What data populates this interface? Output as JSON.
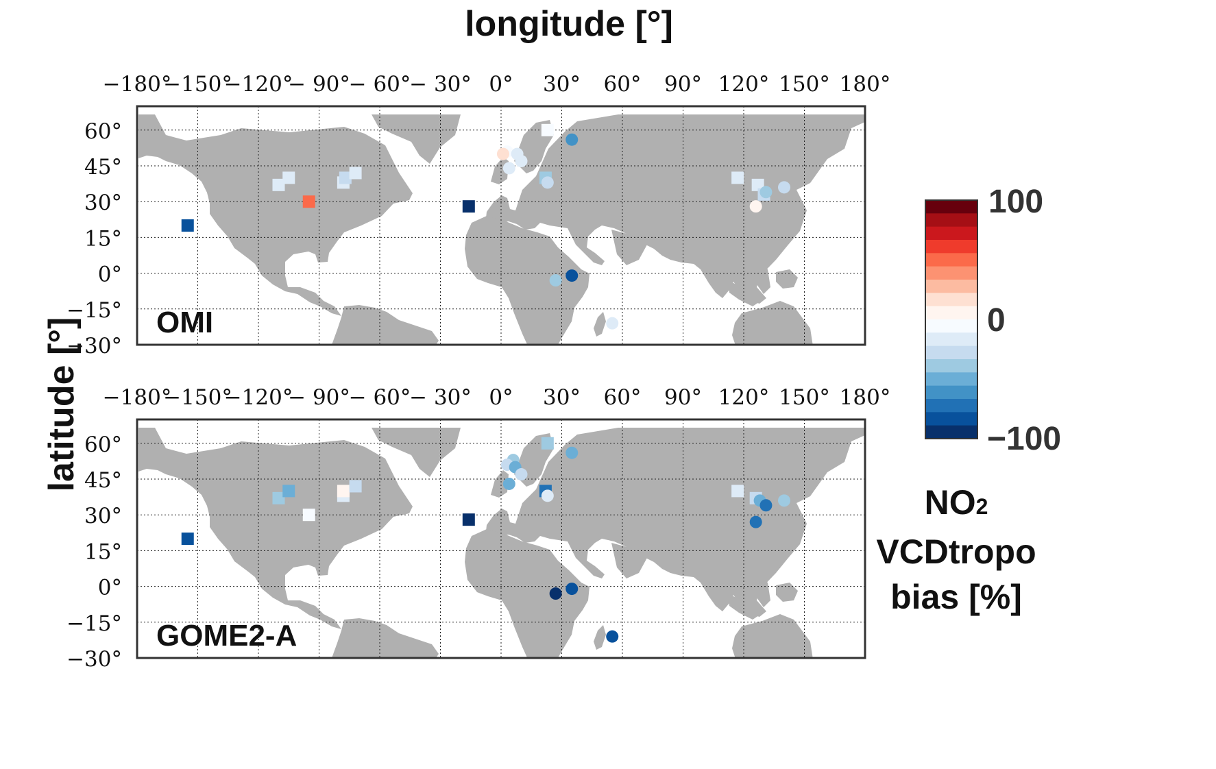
{
  "figure": {
    "x_title": "longitude [°]",
    "y_title": "latitude [°]"
  },
  "axes": {
    "lon_ticks": [
      "−180°",
      "−150°",
      "−120°",
      "− 90°",
      "− 60°",
      "− 30°",
      "0°",
      "30°",
      "60°",
      "90°",
      "120°",
      "150°",
      "180°"
    ],
    "lat_ticks": [
      "60°",
      "45°",
      "30°",
      "15°",
      "0°",
      "−15°",
      "−30°"
    ],
    "lon_values": [
      -180,
      -150,
      -120,
      -90,
      -60,
      -30,
      0,
      30,
      60,
      90,
      120,
      150,
      180
    ],
    "lat_values": [
      60,
      45,
      30,
      15,
      0,
      -15,
      -30
    ],
    "lon_range": [
      -180,
      180
    ],
    "lat_range": [
      -30,
      70
    ],
    "grid": "dotted"
  },
  "colorbar": {
    "max_label": "100",
    "mid_label": "0",
    "min_label": "−100",
    "title_line1_main": "NO",
    "title_line1_sub": "2",
    "title_line2": "VCDtropo",
    "title_line3": "bias [%]",
    "range": [
      -100,
      100
    ],
    "colors": [
      "#67000d",
      "#a50f15",
      "#cb181d",
      "#ef3b2c",
      "#fb6a4a",
      "#fc9272",
      "#fcbba1",
      "#fee0d2",
      "#fff5f0",
      "#f7fbff",
      "#deebf7",
      "#c6dbef",
      "#9ecae1",
      "#6baed6",
      "#4292c6",
      "#2171b5",
      "#08519c",
      "#08306b"
    ]
  },
  "chart_data": [
    {
      "type": "scatter",
      "panel_label": "OMI",
      "x_label": "longitude [°]",
      "y_label": "latitude [°]",
      "markers": [
        {
          "shape": "square",
          "lon": -155,
          "lat": 20,
          "bias": -78
        },
        {
          "shape": "square",
          "lon": -105,
          "lat": 40,
          "bias": -20
        },
        {
          "shape": "square",
          "lon": -110,
          "lat": 37,
          "bias": -12
        },
        {
          "shape": "square",
          "lon": -95,
          "lat": 30,
          "bias": 55
        },
        {
          "shape": "square",
          "lon": -78,
          "lat": 38,
          "bias": -15
        },
        {
          "shape": "square",
          "lon": -77,
          "lat": 40,
          "bias": -25
        },
        {
          "shape": "square",
          "lon": -72,
          "lat": 42,
          "bias": -20
        },
        {
          "shape": "square",
          "lon": -16,
          "lat": 28,
          "bias": -100
        },
        {
          "shape": "square",
          "lon": 23,
          "lat": 60,
          "bias": -5
        },
        {
          "shape": "circle",
          "lon": 35,
          "lat": 56,
          "bias": -65
        },
        {
          "shape": "circle",
          "lon": 3,
          "lat": 51,
          "bias": -10
        },
        {
          "shape": "circle",
          "lon": 1,
          "lat": 50,
          "bias": 15
        },
        {
          "shape": "circle",
          "lon": 8,
          "lat": 50,
          "bias": -20
        },
        {
          "shape": "circle",
          "lon": 10,
          "lat": 47,
          "bias": -20
        },
        {
          "shape": "circle",
          "lon": 4,
          "lat": 44,
          "bias": -15
        },
        {
          "shape": "square",
          "lon": 22,
          "lat": 40,
          "bias": -40
        },
        {
          "shape": "circle",
          "lon": 23,
          "lat": 38,
          "bias": -30
        },
        {
          "shape": "circle",
          "lon": 35,
          "lat": -1,
          "bias": -80
        },
        {
          "shape": "circle",
          "lon": 27,
          "lat": -3,
          "bias": -35
        },
        {
          "shape": "circle",
          "lon": 55,
          "lat": -21,
          "bias": -18
        },
        {
          "shape": "square",
          "lon": 117,
          "lat": 40,
          "bias": -18
        },
        {
          "shape": "square",
          "lon": 127,
          "lat": 37,
          "bias": -20
        },
        {
          "shape": "square",
          "lon": 130,
          "lat": 33,
          "bias": -30
        },
        {
          "shape": "circle",
          "lon": 140,
          "lat": 36,
          "bias": -25
        },
        {
          "shape": "circle",
          "lon": 126,
          "lat": 28,
          "bias": 8
        },
        {
          "shape": "circle",
          "lon": 131,
          "lat": 34,
          "bias": -40
        }
      ]
    },
    {
      "type": "scatter",
      "panel_label": "GOME2-A",
      "x_label": "longitude [°]",
      "y_label": "latitude [°]",
      "markers": [
        {
          "shape": "square",
          "lon": -155,
          "lat": 20,
          "bias": -85
        },
        {
          "shape": "square",
          "lon": -110,
          "lat": 37,
          "bias": -40
        },
        {
          "shape": "square",
          "lon": -105,
          "lat": 40,
          "bias": -50
        },
        {
          "shape": "square",
          "lon": -95,
          "lat": 30,
          "bias": -3
        },
        {
          "shape": "square",
          "lon": -78,
          "lat": 38,
          "bias": -15
        },
        {
          "shape": "square",
          "lon": -78,
          "lat": 40,
          "bias": 5
        },
        {
          "shape": "square",
          "lon": -72,
          "lat": 42,
          "bias": -25
        },
        {
          "shape": "square",
          "lon": -16,
          "lat": 28,
          "bias": -100
        },
        {
          "shape": "square",
          "lon": 23,
          "lat": 60,
          "bias": -35
        },
        {
          "shape": "circle",
          "lon": 35,
          "lat": 56,
          "bias": -50
        },
        {
          "shape": "circle",
          "lon": 6,
          "lat": 53,
          "bias": -40
        },
        {
          "shape": "circle",
          "lon": 3,
          "lat": 51,
          "bias": -30
        },
        {
          "shape": "circle",
          "lon": 7,
          "lat": 50,
          "bias": -55
        },
        {
          "shape": "circle",
          "lon": 10,
          "lat": 47,
          "bias": -30
        },
        {
          "shape": "circle",
          "lon": 4,
          "lat": 43,
          "bias": -55
        },
        {
          "shape": "square",
          "lon": 22,
          "lat": 40,
          "bias": -70
        },
        {
          "shape": "circle",
          "lon": 23,
          "lat": 38,
          "bias": -20
        },
        {
          "shape": "circle",
          "lon": 35,
          "lat": -1,
          "bias": -80
        },
        {
          "shape": "circle",
          "lon": 27,
          "lat": -3,
          "bias": -90
        },
        {
          "shape": "circle",
          "lon": 55,
          "lat": -21,
          "bias": -85
        },
        {
          "shape": "square",
          "lon": 117,
          "lat": 40,
          "bias": -15
        },
        {
          "shape": "square",
          "lon": 126,
          "lat": 37,
          "bias": -25
        },
        {
          "shape": "circle",
          "lon": 128,
          "lat": 36,
          "bias": -45
        },
        {
          "shape": "circle",
          "lon": 131,
          "lat": 34,
          "bias": -70
        },
        {
          "shape": "circle",
          "lon": 140,
          "lat": 36,
          "bias": -40
        },
        {
          "shape": "circle",
          "lon": 126,
          "lat": 27,
          "bias": -75
        }
      ]
    }
  ]
}
